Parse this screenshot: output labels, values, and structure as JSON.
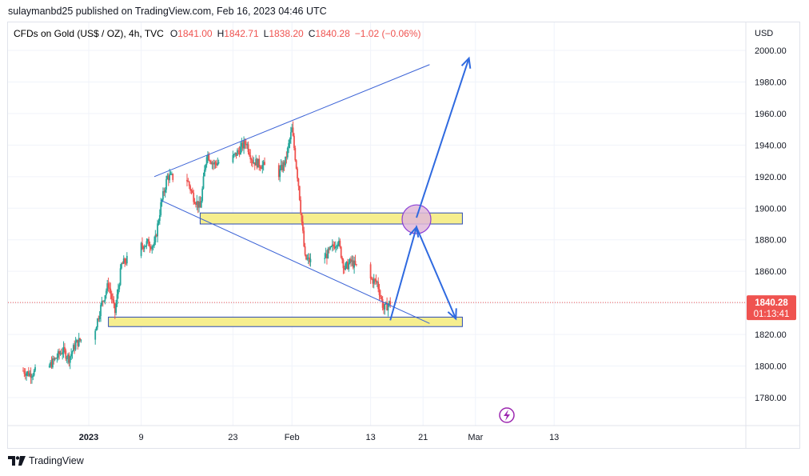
{
  "header": {
    "publish_line": "sulaymanbd25 published on TradingView.com, Feb 16, 2023 04:46 UTC"
  },
  "legend": {
    "symbol": "CFDs on Gold (US$ / OZ), 4h, TVC",
    "o_label": "O",
    "o_value": "1841.00",
    "h_label": "H",
    "h_value": "1842.71",
    "l_label": "L",
    "l_value": "1838.20",
    "c_label": "C",
    "c_value": "1840.28",
    "change": "−1.02 (−0.06%)"
  },
  "footer": {
    "brand": "TradingView"
  },
  "price_tag": {
    "price": "1840.28",
    "countdown": "01:13:41"
  },
  "colors": {
    "up": "#26a69a",
    "down": "#ef5350",
    "trendline": "#3a62d6",
    "arrow": "#2f6ae0",
    "zone_fill": "#f6ee8e",
    "zone_border": "#2b4bb5",
    "circle_fill": "#e0b8d8",
    "circle_border": "#8b3fd6",
    "price_line": "#ef5350",
    "text": "#131722"
  },
  "icons": {
    "event": "lightning-icon",
    "logo": "tradingview-logo-icon"
  },
  "chart_data": {
    "type": "candlestick",
    "currency_label": "USD",
    "y_ticks": [
      "2000.00",
      "1980.00",
      "1960.00",
      "1940.00",
      "1920.00",
      "1900.00",
      "1880.00",
      "1860.00",
      "1840.00",
      "1820.00",
      "1800.00",
      "1780.00"
    ],
    "ylim": [
      1766,
      2012
    ],
    "x_ticks": [
      {
        "label": "2023",
        "date": "2023-01-01",
        "bold": true
      },
      {
        "label": "9",
        "date": "2023-01-09",
        "bold": false
      },
      {
        "label": "23",
        "date": "2023-01-23",
        "bold": false
      },
      {
        "label": "Feb",
        "date": "2023-02-01",
        "bold": false
      },
      {
        "label": "13",
        "date": "2023-02-13",
        "bold": false
      },
      {
        "label": "21",
        "date": "2023-02-21",
        "bold": false
      },
      {
        "label": "Mar",
        "date": "2023-03-01",
        "bold": false
      },
      {
        "label": "13",
        "date": "2023-03-13",
        "bold": false
      }
    ],
    "price_path": [
      [
        "2022-12-22",
        1797
      ],
      [
        "2022-12-23",
        1795
      ],
      [
        "2022-12-26",
        1800
      ],
      [
        "2022-12-27",
        1805
      ],
      [
        "2022-12-28",
        1810
      ],
      [
        "2022-12-29",
        1805
      ],
      [
        "2022-12-30",
        1814
      ],
      [
        "2023-01-02",
        1824
      ],
      [
        "2023-01-03",
        1840
      ],
      [
        "2023-01-04",
        1852
      ],
      [
        "2023-01-05",
        1834
      ],
      [
        "2023-01-06",
        1864
      ],
      [
        "2023-01-09",
        1876
      ],
      [
        "2023-01-10",
        1878
      ],
      [
        "2023-01-11",
        1876
      ],
      [
        "2023-01-12",
        1902
      ],
      [
        "2023-01-13",
        1920
      ],
      [
        "2023-01-16",
        1918
      ],
      [
        "2023-01-17",
        1907
      ],
      [
        "2023-01-18",
        1900
      ],
      [
        "2023-01-19",
        1935
      ],
      [
        "2023-01-20",
        1928
      ],
      [
        "2023-01-23",
        1932
      ],
      [
        "2023-01-24",
        1937
      ],
      [
        "2023-01-25",
        1942
      ],
      [
        "2023-01-26",
        1930
      ],
      [
        "2023-01-27",
        1928
      ],
      [
        "2023-01-30",
        1922
      ],
      [
        "2023-01-31",
        1930
      ],
      [
        "2023-02-01",
        1950
      ],
      [
        "2023-02-02",
        1915
      ],
      [
        "2023-02-03",
        1868
      ],
      [
        "2023-02-04",
        1866
      ],
      [
        "2023-02-06",
        1869
      ],
      [
        "2023-02-07",
        1874
      ],
      [
        "2023-02-08",
        1880
      ],
      [
        "2023-02-09",
        1862
      ],
      [
        "2023-02-10",
        1866
      ],
      [
        "2023-02-13",
        1855
      ],
      [
        "2023-02-14",
        1853
      ],
      [
        "2023-02-15",
        1836
      ],
      [
        "2023-02-16",
        1840.28
      ]
    ],
    "drawings": {
      "upper_trendline": {
        "from": [
          "2023-01-11",
          1920
        ],
        "to": [
          "2023-02-22",
          1991
        ]
      },
      "lower_trendline": {
        "from": [
          "2023-01-12",
          1905
        ],
        "to": [
          "2023-02-22",
          1827
        ]
      },
      "resistance_zone": {
        "from": "2023-01-18",
        "to": "2023-02-27",
        "low": 1890,
        "high": 1897
      },
      "support_zone": {
        "from": "2023-01-04",
        "to": "2023-02-27",
        "low": 1825,
        "high": 1831
      },
      "arrow_path_1": [
        [
          "2023-02-16",
          1829
        ],
        [
          "2023-02-20",
          1888
        ],
        [
          "2023-02-26",
          1830
        ]
      ],
      "arrow_path_2": [
        [
          "2023-02-20",
          1894
        ],
        [
          "2023-02-28",
          1995
        ]
      ],
      "circle": {
        "center": [
          "2023-02-20",
          1893
        ],
        "radius_px": 18
      },
      "current_price": 1840.28
    }
  }
}
